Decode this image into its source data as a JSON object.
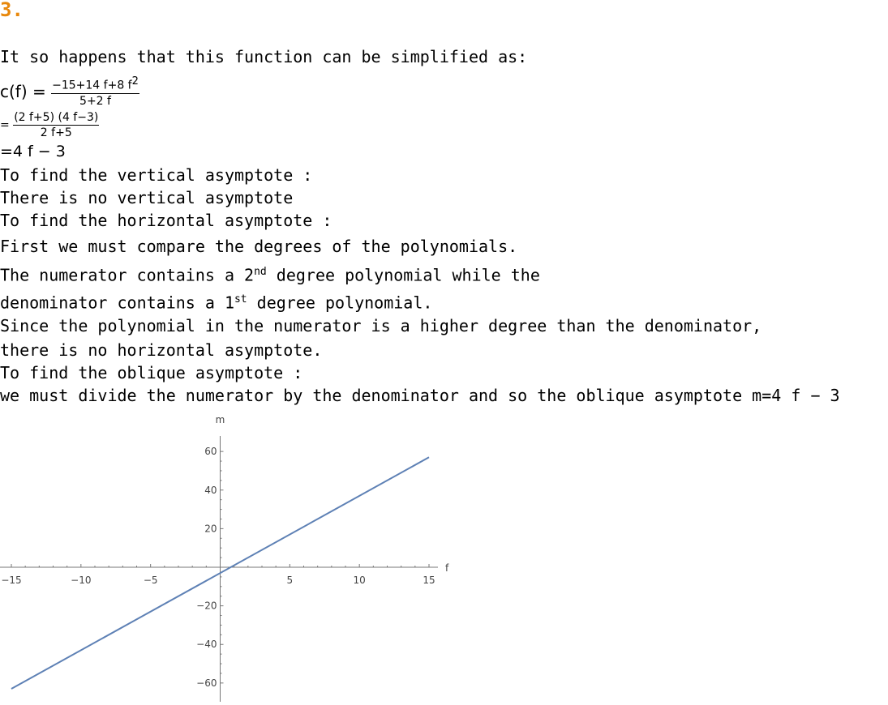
{
  "question_number": "3.",
  "intro": "It so happens that this function can be simplified as:",
  "equations": {
    "lhs": "c(f) =",
    "frac1_num": "−15+14 f+8 f",
    "frac1_num_exp": "2",
    "frac1_den": "5+2 f",
    "eq2_prefix": "=",
    "frac2_num": "(2 f+5) (4 f−3)",
    "frac2_den": "2 f+5",
    "eq3": "=4 f − 3"
  },
  "lines": {
    "vertical_heading": "To find the vertical asymptote :",
    "vertical_result": "There is no vertical asymptote",
    "horizontal_heading": "To find the horizontal asymptote :",
    "compare": "First we must compare the degrees of the polynomials.",
    "numerator_a": "The numerator contains a 2",
    "numerator_sup": "nd",
    "numerator_b": " degree polynomial while the",
    "denominator_a": "denominator contains a 1",
    "denominator_sup": "st",
    "denominator_b": " degree polynomial.",
    "since": "Since the polynomial in the numerator is a higher degree than the denominator,",
    "no_horizontal": "there is no horizontal asymptote.",
    "oblique_heading": "To find the oblique asymptote :",
    "oblique_text": "we must divide the numerator by the denominator and so the oblique asymptote m=4 f − 3"
  },
  "chart_data": {
    "type": "line",
    "xlabel": "f",
    "ylabel": "m",
    "xlim": [
      -15,
      15
    ],
    "ylim": [
      -63,
      63
    ],
    "x_ticks": [
      -15,
      -10,
      -5,
      5,
      10,
      15
    ],
    "x_tick_labels": [
      "−15",
      "−10",
      "−5",
      "5",
      "10",
      "15"
    ],
    "y_ticks": [
      60,
      40,
      20,
      -20,
      -40,
      -60
    ],
    "y_tick_labels": [
      "60",
      "40",
      "20",
      "−20",
      "−40",
      "−60"
    ],
    "series": [
      {
        "x": [
          -15,
          15
        ],
        "y": [
          -63,
          57
        ]
      }
    ],
    "line_color": "#5e81b5",
    "grid": false
  }
}
